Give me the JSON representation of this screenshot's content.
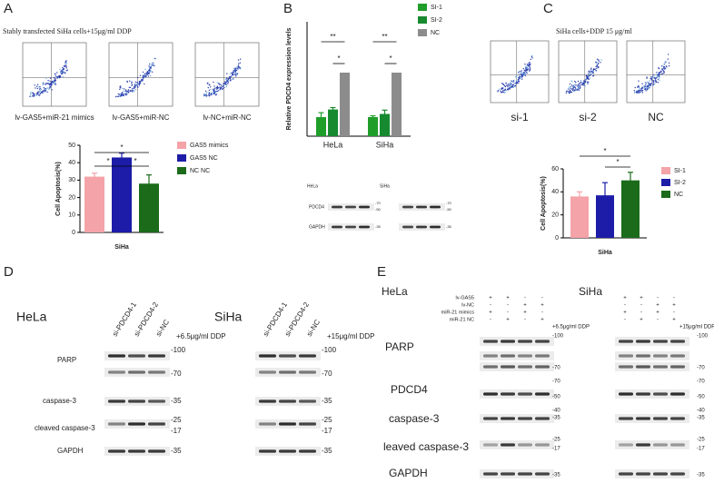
{
  "panel_labels": [
    "A",
    "B",
    "C",
    "D",
    "E"
  ],
  "panel_a": {
    "title": "Stably transfected SiHa cells+15μg/ml DDP",
    "flow_captions": [
      "lv-GAS5+miR-21 mimics",
      "lv-GAS5+miR-NC",
      "lv-NC+miR-NC"
    ]
  },
  "panel_b_blot": {
    "cell_lines": [
      "HeLa",
      "SiHa"
    ],
    "rows": [
      "PDCD4",
      "GAPDH"
    ],
    "markers": [
      "-70",
      "-50",
      "-35"
    ]
  },
  "panel_c": {
    "title": "SiHa cells+DDP 15 μg/ml",
    "flow_captions": [
      "si-1",
      "si-2",
      "NC"
    ]
  },
  "panel_d": {
    "cell_lines": [
      "HeLa",
      "SiHa"
    ],
    "lanes": [
      "si-PDCD4-1",
      "si-PDCD4-2",
      "si-NC"
    ],
    "treatments": [
      "+6.5μg/ml DDP",
      "+15μg/ml DDP"
    ],
    "rows": [
      "PARP",
      "caspase-3",
      "cleaved caspase-3",
      "GAPDH"
    ],
    "markers": [
      "-100",
      "-70",
      "-35",
      "-25",
      "-17",
      "-35"
    ]
  },
  "panel_e": {
    "cell_lines": [
      "HeLa",
      "SiHa"
    ],
    "conditions": [
      "lv-GAS5",
      "lv-NC",
      "miR-21 mimics",
      "miR-21 NC"
    ],
    "signs": [
      [
        "+",
        "+",
        "-",
        "-"
      ],
      [
        "-",
        "-",
        "+",
        "+"
      ],
      [
        "+",
        "-",
        "+",
        "-"
      ],
      [
        "-",
        "+",
        "-",
        "+"
      ]
    ],
    "treatments": [
      "+6.5μg/ml DDP",
      "+15μg/ml DDP"
    ],
    "rows": [
      "PARP",
      "PDCD4",
      "caspase-3",
      "leaved caspase-3",
      "GAPDH"
    ],
    "markers": [
      "-100",
      "-70",
      "-70",
      "-50",
      "-40",
      "-35",
      "-25",
      "-17",
      "-35"
    ]
  },
  "chart_data": [
    {
      "type": "bar",
      "x_label": "SiHa",
      "y_label": "Cell Apoptosis(%)",
      "categories": [
        null
      ],
      "series": [
        {
          "name": "GAS5 mimics",
          "color": "#f4a3a8",
          "values": [
            32
          ],
          "errors": [
            2
          ]
        },
        {
          "name": "GAS5 NC",
          "color": "#1c1ca8",
          "values": [
            43
          ],
          "errors": [
            2.5
          ]
        },
        {
          "name": "NC NC",
          "color": "#1b6b1b",
          "values": [
            28
          ],
          "errors": [
            5
          ]
        }
      ],
      "ylim": [
        0,
        50
      ],
      "yticks": [
        0,
        10,
        20,
        30,
        40,
        50
      ],
      "annotations": [
        "*",
        "*",
        "*"
      ]
    },
    {
      "type": "bar",
      "y_label": "Relative PDCD4 expression levels",
      "categories": [
        "HeLa",
        "SiHa"
      ],
      "series": [
        {
          "name": "SI-1",
          "color": "#1f9e2a",
          "values": [
            0.3,
            0.3
          ],
          "errors": [
            0.07,
            0.02
          ]
        },
        {
          "name": "SI-2",
          "color": "#178a30",
          "values": [
            0.42,
            0.35
          ],
          "errors": [
            0.03,
            0.06
          ]
        },
        {
          "name": "NC",
          "color": "#8c8c8c",
          "values": [
            1,
            1
          ],
          "errors": [
            0,
            0
          ]
        }
      ],
      "ylim": [
        0,
        1.8
      ],
      "annotations": [
        "**",
        "*",
        "**",
        "*"
      ]
    },
    {
      "type": "bar",
      "x_label": "SiHa",
      "y_label": "Cell Apoptosis(%)",
      "categories": [
        null
      ],
      "series": [
        {
          "name": "SI-1",
          "color": "#f4a3a8",
          "values": [
            36
          ],
          "errors": [
            4
          ]
        },
        {
          "name": "SI-2",
          "color": "#1c1ca8",
          "values": [
            37
          ],
          "errors": [
            11
          ]
        },
        {
          "name": "NC",
          "color": "#1b6b1b",
          "values": [
            50
          ],
          "errors": [
            7
          ]
        }
      ],
      "ylim": [
        0,
        60
      ],
      "yticks": [
        0,
        20,
        40,
        60
      ],
      "annotations": [
        "*",
        "*"
      ]
    }
  ]
}
